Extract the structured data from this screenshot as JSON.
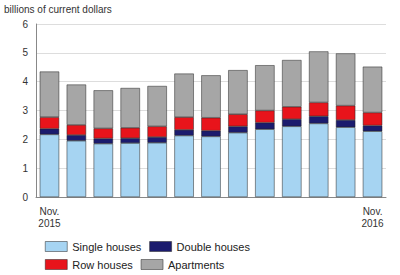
{
  "chart_data": {
    "type": "bar",
    "stacked": true,
    "y_label": "billions of current dollars",
    "categories": [
      "Nov.\n2015",
      null,
      null,
      null,
      null,
      null,
      null,
      null,
      null,
      null,
      null,
      null,
      "Nov.\n2016"
    ],
    "series": [
      {
        "name": "Single houses",
        "color": "#a6d4f2",
        "values": [
          2.17,
          1.95,
          1.85,
          1.87,
          1.88,
          2.13,
          2.1,
          2.23,
          2.35,
          2.45,
          2.55,
          2.42,
          2.28
        ]
      },
      {
        "name": "Double houses",
        "color": "#1b1b6e",
        "values": [
          0.2,
          0.2,
          0.18,
          0.17,
          0.2,
          0.2,
          0.2,
          0.22,
          0.23,
          0.25,
          0.25,
          0.25,
          0.2
        ]
      },
      {
        "name": "Row houses",
        "color": "#e8141b",
        "values": [
          0.4,
          0.35,
          0.35,
          0.36,
          0.37,
          0.44,
          0.45,
          0.42,
          0.42,
          0.43,
          0.48,
          0.5,
          0.45
        ]
      },
      {
        "name": "Apartments",
        "color": "#a6a6a6",
        "values": [
          1.58,
          1.4,
          1.32,
          1.38,
          1.4,
          1.51,
          1.47,
          1.53,
          1.57,
          1.62,
          1.77,
          1.81,
          1.59
        ]
      }
    ],
    "ylim": [
      0,
      6
    ],
    "yticks": [
      0,
      1,
      2,
      3,
      4,
      5,
      6
    ],
    "grid": true,
    "legend": "bottom"
  }
}
